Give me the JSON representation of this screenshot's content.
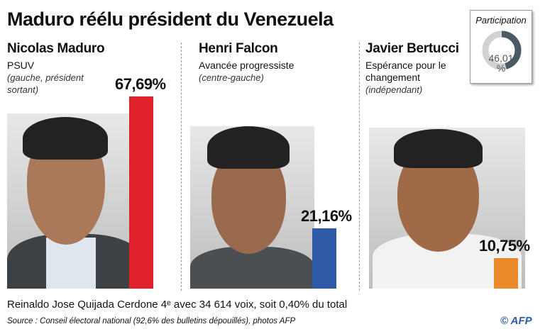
{
  "title": "Maduro réélu président du Venezuela",
  "participation": {
    "label": "Participation",
    "value": 46.01,
    "value_text": "46,01",
    "unit": "%",
    "colors": {
      "filled": "#4a5a63",
      "empty": "#d0d2d3"
    }
  },
  "chart_data": {
    "type": "bar",
    "title": "Maduro réélu président du Venezuela",
    "categories": [
      "Nicolas Maduro",
      "Henri Falcon",
      "Javier Bertucci"
    ],
    "values": [
      67.69,
      21.16,
      10.75
    ],
    "labels": [
      "67,69%",
      "21,16%",
      "10,75%"
    ],
    "colors": [
      "#e0202a",
      "#2e5aa8",
      "#ea8a2a"
    ],
    "ylim": [
      0,
      100
    ]
  },
  "candidates": [
    {
      "name": "Nicolas Maduro",
      "party": "PSUV",
      "note": "(gauche, président sortant)"
    },
    {
      "name": "Henri Falcon",
      "party": "Avancée progressiste",
      "note": "(centre-gauche)"
    },
    {
      "name": "Javier Bertucci",
      "party": "Espérance pour le changement",
      "note": "(indépendant)"
    }
  ],
  "footer": {
    "fourth": "Reinaldo Jose Quijada Cerdone 4ᵉ avec 34 614 voix, soit 0,40% du total",
    "source": "Source : Conseil électoral national (92,6% des bulletins dépouillés), photos AFP",
    "credit": "© AFP"
  }
}
